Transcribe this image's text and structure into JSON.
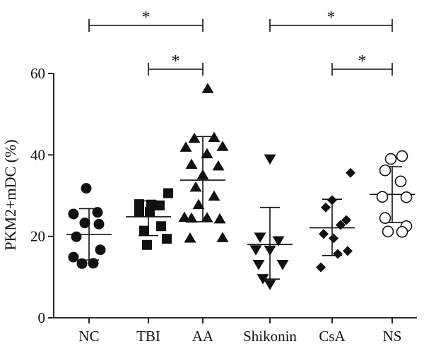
{
  "chart_data": {
    "type": "scatter",
    "ylabel": "PKM2+mDC (%)",
    "ylim": [
      0,
      60
    ],
    "yticks": [
      0,
      20,
      40,
      60
    ],
    "categories": [
      "NC",
      "TBI",
      "AA",
      "Shikonin",
      "CsA",
      "NS"
    ],
    "groups": [
      {
        "name": "NC",
        "marker": "filled-circle",
        "mean": 20.5,
        "sd_low": 14.2,
        "sd_high": 26.8,
        "points": [
          {
            "dx": -4,
            "y": 31.8
          },
          {
            "dx": -22,
            "y": 25.5
          },
          {
            "dx": 12,
            "y": 25.9
          },
          {
            "dx": -6,
            "y": 23.3
          },
          {
            "dx": 14,
            "y": 23.0
          },
          {
            "dx": -18,
            "y": 19.9
          },
          {
            "dx": 16,
            "y": 16.7
          },
          {
            "dx": -22,
            "y": 14.9
          },
          {
            "dx": -10,
            "y": 13.3
          },
          {
            "dx": 6,
            "y": 13.4
          }
        ]
      },
      {
        "name": "TBI",
        "marker": "filled-square",
        "mean": 24.8,
        "sd_low": 20.2,
        "sd_high": 28.7,
        "points": [
          {
            "dx": 28,
            "y": 30.6
          },
          {
            "dx": -13,
            "y": 27.9
          },
          {
            "dx": 4,
            "y": 27.8
          },
          {
            "dx": 16,
            "y": 27.6
          },
          {
            "dx": -13,
            "y": 25.9
          },
          {
            "dx": 2,
            "y": 26.0
          },
          {
            "dx": 18,
            "y": 22.5
          },
          {
            "dx": -6,
            "y": 21.4
          },
          {
            "dx": 26,
            "y": 19.4
          },
          {
            "dx": -2,
            "y": 17.9
          }
        ]
      },
      {
        "name": "AA",
        "marker": "filled-triangle-up",
        "mean": 33.8,
        "sd_low": 23.6,
        "sd_high": 44.5,
        "points": [
          {
            "dx": 7,
            "y": 56.3
          },
          {
            "dx": -12,
            "y": 44.1
          },
          {
            "dx": 16,
            "y": 44.3
          },
          {
            "dx": -24,
            "y": 41.9
          },
          {
            "dx": 28,
            "y": 42.1
          },
          {
            "dx": 6,
            "y": 40.3
          },
          {
            "dx": -16,
            "y": 37.7
          },
          {
            "dx": 22,
            "y": 37.3
          },
          {
            "dx": 0,
            "y": 35.1
          },
          {
            "dx": -10,
            "y": 32.1
          },
          {
            "dx": 16,
            "y": 29.9
          },
          {
            "dx": -6,
            "y": 27.8
          },
          {
            "dx": -26,
            "y": 24.7
          },
          {
            "dx": -16,
            "y": 24.5
          },
          {
            "dx": 6,
            "y": 24.6
          },
          {
            "dx": 24,
            "y": 24.3
          },
          {
            "dx": -18,
            "y": 19.6
          },
          {
            "dx": 28,
            "y": 19.7
          }
        ]
      },
      {
        "name": "Shikonin",
        "marker": "filled-triangle-down",
        "mean": 18.0,
        "sd_low": 9.5,
        "sd_high": 27.1,
        "points": [
          {
            "dx": 0,
            "y": 39.0
          },
          {
            "dx": -14,
            "y": 19.8
          },
          {
            "dx": 12,
            "y": 18.9
          },
          {
            "dx": -20,
            "y": 16.7
          },
          {
            "dx": 0,
            "y": 16.6
          },
          {
            "dx": -16,
            "y": 13.1
          },
          {
            "dx": 18,
            "y": 13.1
          },
          {
            "dx": -10,
            "y": 9.6
          },
          {
            "dx": 0,
            "y": 8.2
          }
        ]
      },
      {
        "name": "CsA",
        "marker": "filled-diamond",
        "mean": 22.1,
        "sd_low": 15.3,
        "sd_high": 29.1,
        "points": [
          {
            "dx": 26,
            "y": 35.6
          },
          {
            "dx": 0,
            "y": 28.9
          },
          {
            "dx": -9,
            "y": 27.1
          },
          {
            "dx": 20,
            "y": 24.0
          },
          {
            "dx": 12,
            "y": 22.8
          },
          {
            "dx": -12,
            "y": 20.6
          },
          {
            "dx": 2,
            "y": 19.5
          },
          {
            "dx": 22,
            "y": 16.4
          },
          {
            "dx": 8,
            "y": 15.7
          },
          {
            "dx": -16,
            "y": 12.4
          }
        ]
      },
      {
        "name": "NS",
        "marker": "open-circle",
        "mean": 30.3,
        "sd_low": 23.4,
        "sd_high": 37.1,
        "points": [
          {
            "dx": 14,
            "y": 39.7
          },
          {
            "dx": -2,
            "y": 39.0
          },
          {
            "dx": -10,
            "y": 36.2
          },
          {
            "dx": 12,
            "y": 33.5
          },
          {
            "dx": -14,
            "y": 29.7
          },
          {
            "dx": 20,
            "y": 29.6
          },
          {
            "dx": -10,
            "y": 24.5
          },
          {
            "dx": 20,
            "y": 22.5
          },
          {
            "dx": -6,
            "y": 21.2
          },
          {
            "dx": 14,
            "y": 21.1
          }
        ]
      }
    ],
    "significance": [
      {
        "from": "NC",
        "to": "AA",
        "label": "*",
        "level": "upper"
      },
      {
        "from": "TBI",
        "to": "AA",
        "label": "*",
        "level": "lower"
      },
      {
        "from": "Shikonin",
        "to": "NS",
        "label": "*",
        "level": "upper"
      },
      {
        "from": "CsA",
        "to": "NS",
        "label": "*",
        "level": "lower"
      }
    ]
  }
}
